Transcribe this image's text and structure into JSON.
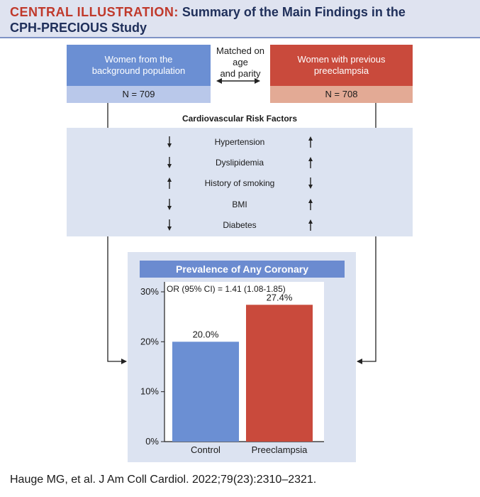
{
  "header": {
    "label": "CENTRAL ILLUSTRATION:",
    "title_part1": "Summary of the Main Findings in the",
    "title_part2": "CPH-PRECIOUS Study"
  },
  "groups": {
    "left": {
      "line1": "Women from the",
      "line2": "background population",
      "n": "N = 709",
      "color": "#6b8fd3"
    },
    "right": {
      "line1": "Women with previous",
      "line2": "preeclampsia",
      "n": "N = 708",
      "color": "#c94a3c"
    },
    "matched": {
      "line1": "Matched on",
      "line2": "age",
      "line3": "and parity"
    }
  },
  "risk_factors": {
    "title": "Cardiovascular Risk Factors",
    "items": [
      {
        "label": "Hypertension",
        "left_dir": "down",
        "right_dir": "up"
      },
      {
        "label": "Dyslipidemia",
        "left_dir": "down",
        "right_dir": "up"
      },
      {
        "label": "History of smoking",
        "left_dir": "up",
        "right_dir": "down"
      },
      {
        "label": "BMI",
        "left_dir": "down",
        "right_dir": "up"
      },
      {
        "label": "Diabetes",
        "left_dir": "down",
        "right_dir": "up"
      }
    ]
  },
  "chart_data": {
    "type": "bar",
    "title": "Prevalence of Any Coronary Atherosclerosis",
    "annotation": "OR (95% CI) = 1.41 (1.08-1.85)",
    "categories": [
      "Control",
      "Preeclampsia"
    ],
    "values": [
      20.0,
      27.4
    ],
    "value_labels": [
      "20.0%",
      "27.4%"
    ],
    "colors": [
      "#6b8fd3",
      "#c94a3c"
    ],
    "ylim": [
      0,
      30
    ],
    "yticks": [
      0,
      10,
      20,
      30
    ],
    "ytick_labels": [
      "0%",
      "10%",
      "20%",
      "30%"
    ],
    "xlabel": "",
    "ylabel": ""
  },
  "footer": {
    "citation": "Hauge MG, et al. J Am Coll Cardiol. 2022;79(23):2310–2321."
  }
}
